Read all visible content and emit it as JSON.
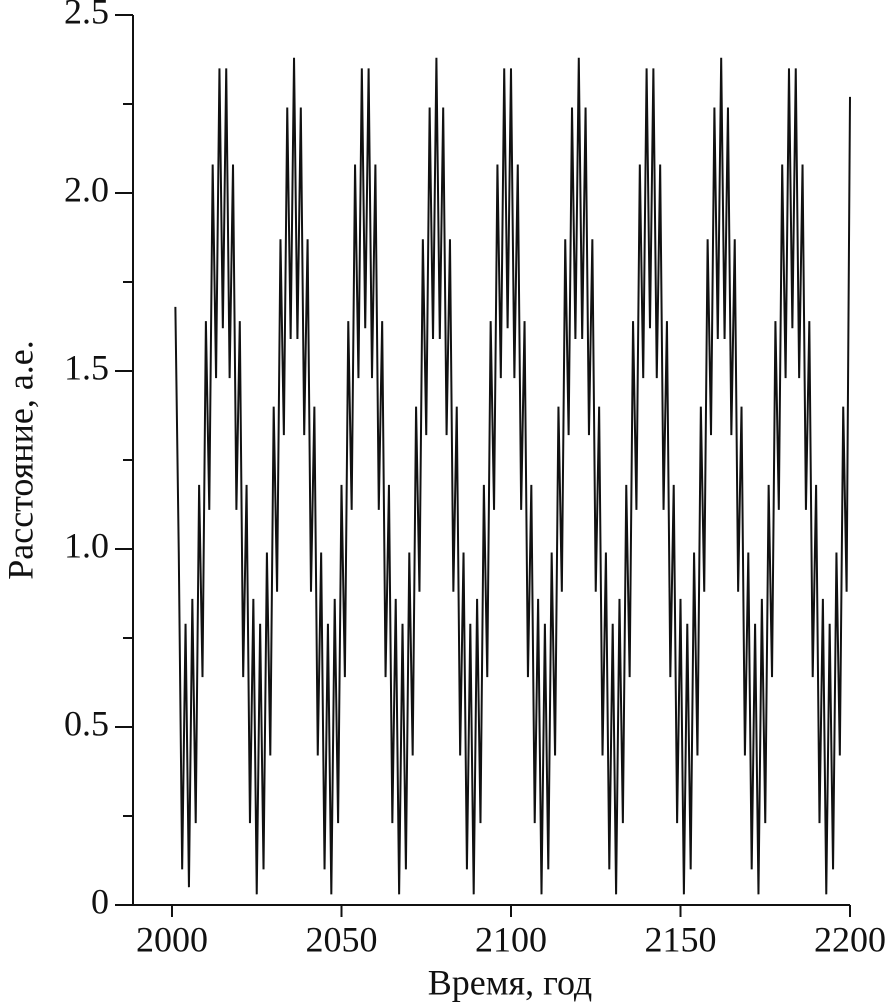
{
  "chart_data": {
    "type": "line",
    "x_label": "Время, год",
    "y_label": "Расстояние, а.е.",
    "xlim": [
      1988.5,
      2200
    ],
    "xticks": [
      2000,
      2050,
      2100,
      2150,
      2200
    ],
    "ylim": [
      0,
      2.5
    ],
    "yticks": [
      0,
      0.5,
      {
        "value": 1,
        "label": "1.0"
      },
      1.5,
      {
        "value": 2,
        "label": "2.0"
      },
      2.5
    ],
    "yminorticks": [
      0.25,
      0.75,
      1.25,
      1.75,
      2.25
    ],
    "grid": false,
    "x": [
      2001,
      2002,
      2003,
      2004,
      2005,
      2006,
      2007,
      2008,
      2009,
      2010,
      2011,
      2012,
      2013,
      2014,
      2015,
      2016,
      2017,
      2018,
      2019,
      2020,
      2021,
      2022,
      2023,
      2024,
      2025,
      2026,
      2027,
      2028,
      2029,
      2030,
      2031,
      2032,
      2033,
      2034,
      2035,
      2036,
      2037,
      2038,
      2039,
      2040,
      2041,
      2042,
      2043,
      2044,
      2045,
      2046,
      2047,
      2048,
      2049,
      2050,
      2051,
      2052,
      2053,
      2054,
      2055,
      2056,
      2057,
      2058,
      2059,
      2060,
      2061,
      2062,
      2063,
      2064,
      2065,
      2066,
      2067,
      2068,
      2069,
      2070,
      2071,
      2072,
      2073,
      2074,
      2075,
      2076,
      2077,
      2078,
      2079,
      2080,
      2081,
      2082,
      2083,
      2084,
      2085,
      2086,
      2087,
      2088,
      2089,
      2090,
      2091,
      2092,
      2093,
      2094,
      2095,
      2096,
      2097,
      2098,
      2099,
      2100,
      2101,
      2102,
      2103,
      2104,
      2105,
      2106,
      2107,
      2108,
      2109,
      2110,
      2111,
      2112,
      2113,
      2114,
      2115,
      2116,
      2117,
      2118,
      2119,
      2120,
      2121,
      2122,
      2123,
      2124,
      2125,
      2126,
      2127,
      2128,
      2129,
      2130,
      2131,
      2132,
      2133,
      2134,
      2135,
      2136,
      2137,
      2138,
      2139,
      2140,
      2141,
      2142,
      2143,
      2144,
      2145,
      2146,
      2147,
      2148,
      2149,
      2150,
      2151,
      2152,
      2153,
      2154,
      2155,
      2156,
      2157,
      2158,
      2159,
      2160,
      2161,
      2162,
      2163,
      2164,
      2165,
      2166,
      2167,
      2168,
      2169,
      2170,
      2171,
      2172,
      2173,
      2174,
      2175,
      2176,
      2177,
      2178,
      2179,
      2180,
      2181,
      2182,
      2183,
      2184,
      2185,
      2186,
      2187,
      2188,
      2189,
      2190,
      2191,
      2192,
      2193,
      2194,
      2195,
      2196,
      2197,
      2198,
      2199,
      2200
    ],
    "series": [
      {
        "name": "Расстояние",
        "color": "#111111",
        "values": [
          1.68,
          0.99,
          0.1,
          0.79,
          0.05,
          0.86,
          0.23,
          1.18,
          0.64,
          1.64,
          1.11,
          2.08,
          1.48,
          2.35,
          1.62,
          2.35,
          1.48,
          2.08,
          1.11,
          1.64,
          0.64,
          1.18,
          0.23,
          0.86,
          0.03,
          0.79,
          0.1,
          0.99,
          0.42,
          1.4,
          0.88,
          1.87,
          1.32,
          2.24,
          1.59,
          2.38,
          1.59,
          2.24,
          1.32,
          1.87,
          0.88,
          1.4,
          0.42,
          0.99,
          0.1,
          0.79,
          0.03,
          0.86,
          0.23,
          1.18,
          0.64,
          1.64,
          1.11,
          2.08,
          1.48,
          2.35,
          1.62,
          2.35,
          1.48,
          2.08,
          1.11,
          1.64,
          0.64,
          1.18,
          0.23,
          0.86,
          0.03,
          0.79,
          0.1,
          0.99,
          0.42,
          1.4,
          0.88,
          1.87,
          1.32,
          2.24,
          1.59,
          2.38,
          1.59,
          2.24,
          1.32,
          1.87,
          0.88,
          1.4,
          0.42,
          0.99,
          0.1,
          0.79,
          0.03,
          0.86,
          0.23,
          1.18,
          0.64,
          1.64,
          1.11,
          2.08,
          1.48,
          2.35,
          1.62,
          2.35,
          1.48,
          2.08,
          1.11,
          1.64,
          0.64,
          1.18,
          0.23,
          0.86,
          0.03,
          0.79,
          0.1,
          0.99,
          0.42,
          1.4,
          0.88,
          1.87,
          1.32,
          2.24,
          1.59,
          2.38,
          1.59,
          2.24,
          1.32,
          1.87,
          0.88,
          1.4,
          0.42,
          0.99,
          0.1,
          0.79,
          0.03,
          0.86,
          0.23,
          1.18,
          0.64,
          1.64,
          1.11,
          2.08,
          1.48,
          2.35,
          1.62,
          2.35,
          1.48,
          2.08,
          1.11,
          1.64,
          0.64,
          1.18,
          0.23,
          0.86,
          0.03,
          0.79,
          0.1,
          0.99,
          0.42,
          1.4,
          0.88,
          1.87,
          1.32,
          2.24,
          1.59,
          2.38,
          1.59,
          2.24,
          1.32,
          1.87,
          0.88,
          1.4,
          0.42,
          0.99,
          0.1,
          0.79,
          0.03,
          0.86,
          0.23,
          1.18,
          0.64,
          1.64,
          1.11,
          2.08,
          1.48,
          2.35,
          1.62,
          2.35,
          1.48,
          2.08,
          1.11,
          1.64,
          0.64,
          1.18,
          0.23,
          0.86,
          0.03,
          0.79,
          0.1,
          0.99,
          0.42,
          1.4,
          0.88,
          2.27
        ]
      }
    ]
  }
}
